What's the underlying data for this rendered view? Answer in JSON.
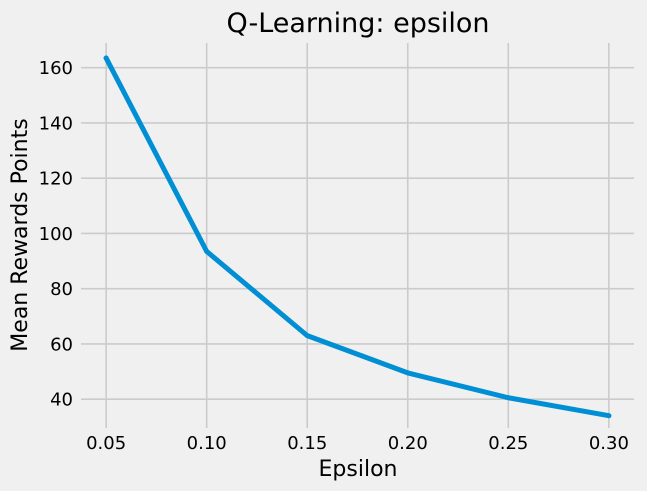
{
  "chart_data": {
    "type": "line",
    "title": "Q-Learning: epsilon",
    "xlabel": "Epsilon",
    "ylabel": "Mean Rewards Points",
    "x": [
      0.05,
      0.1,
      0.15,
      0.2,
      0.25,
      0.3
    ],
    "series": [
      {
        "values": [
          163.5,
          93.5,
          63,
          49.5,
          40.5,
          34
        ],
        "color": "#008fd5"
      }
    ],
    "xticks": [
      "0.05",
      "0.10",
      "0.15",
      "0.20",
      "0.25",
      "0.30"
    ],
    "yticks": [
      "40",
      "60",
      "80",
      "100",
      "120",
      "140",
      "160"
    ],
    "xlim": [
      0.0375,
      0.3125
    ],
    "ylim": [
      29.55,
      168.95
    ],
    "grid": true,
    "legend": "none"
  }
}
